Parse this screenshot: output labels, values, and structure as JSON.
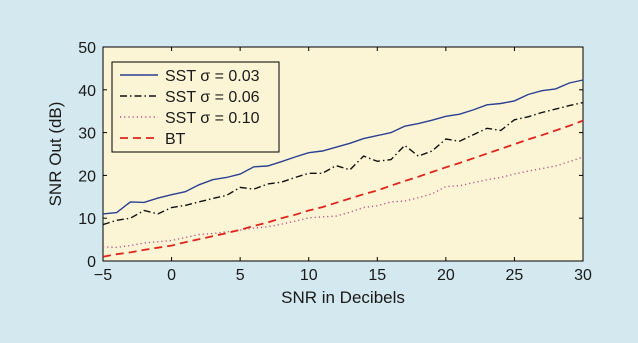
{
  "chart_data": {
    "type": "line",
    "xlabel": "SNR in Decibels",
    "ylabel": "SNR Out (dB)",
    "xlim": [
      -5,
      30
    ],
    "ylim": [
      0,
      50
    ],
    "xticks": [
      -5,
      0,
      5,
      10,
      15,
      20,
      25,
      30
    ],
    "xtick_labels": [
      "−5",
      "0",
      "5",
      "10",
      "15",
      "20",
      "25",
      "30"
    ],
    "yticks": [
      0,
      10,
      20,
      30,
      40,
      50
    ],
    "ytick_labels": [
      "0",
      "10",
      "20",
      "30",
      "40",
      "50"
    ],
    "grid": false,
    "legend_position": "top-left",
    "plot_background": "#fbf5d6",
    "x": [
      -5,
      -4,
      -3,
      -2,
      -1,
      0,
      1,
      2,
      3,
      4,
      5,
      6,
      7,
      8,
      9,
      10,
      11,
      12,
      13,
      14,
      15,
      16,
      17,
      18,
      19,
      20,
      21,
      22,
      23,
      24,
      25,
      26,
      27,
      28,
      29,
      30
    ],
    "series": [
      {
        "name": "SST σ = 0.03",
        "color": "#2b3f93",
        "style": "solid",
        "values": [
          11,
          11.3,
          13.8,
          13.7,
          14.7,
          15.5,
          16.2,
          17.8,
          19,
          19.5,
          20.3,
          22,
          22.2,
          23.2,
          24.3,
          25.3,
          25.7,
          26.6,
          27.5,
          28.6,
          29.3,
          30,
          31.5,
          32.1,
          32.9,
          33.8,
          34.3,
          35.3,
          36.5,
          36.8,
          37.4,
          38.9,
          39.8,
          40.2,
          41.6,
          42.3
        ]
      },
      {
        "name": "SST σ = 0.06",
        "color": "#111111",
        "style": "dashdot",
        "values": [
          8.5,
          9.5,
          10,
          11.8,
          11,
          12.5,
          13,
          13.8,
          14.6,
          15.3,
          17.2,
          16.8,
          18,
          18.4,
          19.5,
          20.5,
          20.5,
          22.3,
          21.3,
          24.5,
          23.3,
          23.7,
          27,
          24.5,
          25.7,
          28.5,
          28,
          29.5,
          31,
          30.5,
          33,
          33.7,
          34.7,
          35.5,
          36.3,
          37
        ]
      },
      {
        "name": "SST σ = 0.10",
        "color": "#b5548a",
        "style": "dotted",
        "values": [
          3.3,
          3.2,
          3.6,
          4.2,
          4.5,
          4.8,
          5.5,
          6.2,
          6.4,
          6.8,
          7.2,
          7.7,
          8,
          8.6,
          9.3,
          10.1,
          10.3,
          10.5,
          11.4,
          12.5,
          12.9,
          13.8,
          14,
          14.8,
          15.7,
          17.4,
          17.6,
          18.3,
          19,
          19.5,
          20.3,
          21,
          21.6,
          22.2,
          23.2,
          24.3
        ]
      },
      {
        "name": "BT",
        "color": "#e0241d",
        "style": "dashed",
        "values": [
          1,
          1.6,
          2,
          2.6,
          3.1,
          3.6,
          4.4,
          5.1,
          5.8,
          6.5,
          7.3,
          8.2,
          9,
          10,
          10.8,
          11.8,
          12.6,
          13.6,
          14.6,
          15.6,
          16.5,
          17.6,
          18.7,
          19.7,
          20.8,
          21.9,
          22.9,
          24,
          25.1,
          26.2,
          27.3,
          28.4,
          29.4,
          30.5,
          31.6,
          32.8
        ]
      }
    ]
  }
}
